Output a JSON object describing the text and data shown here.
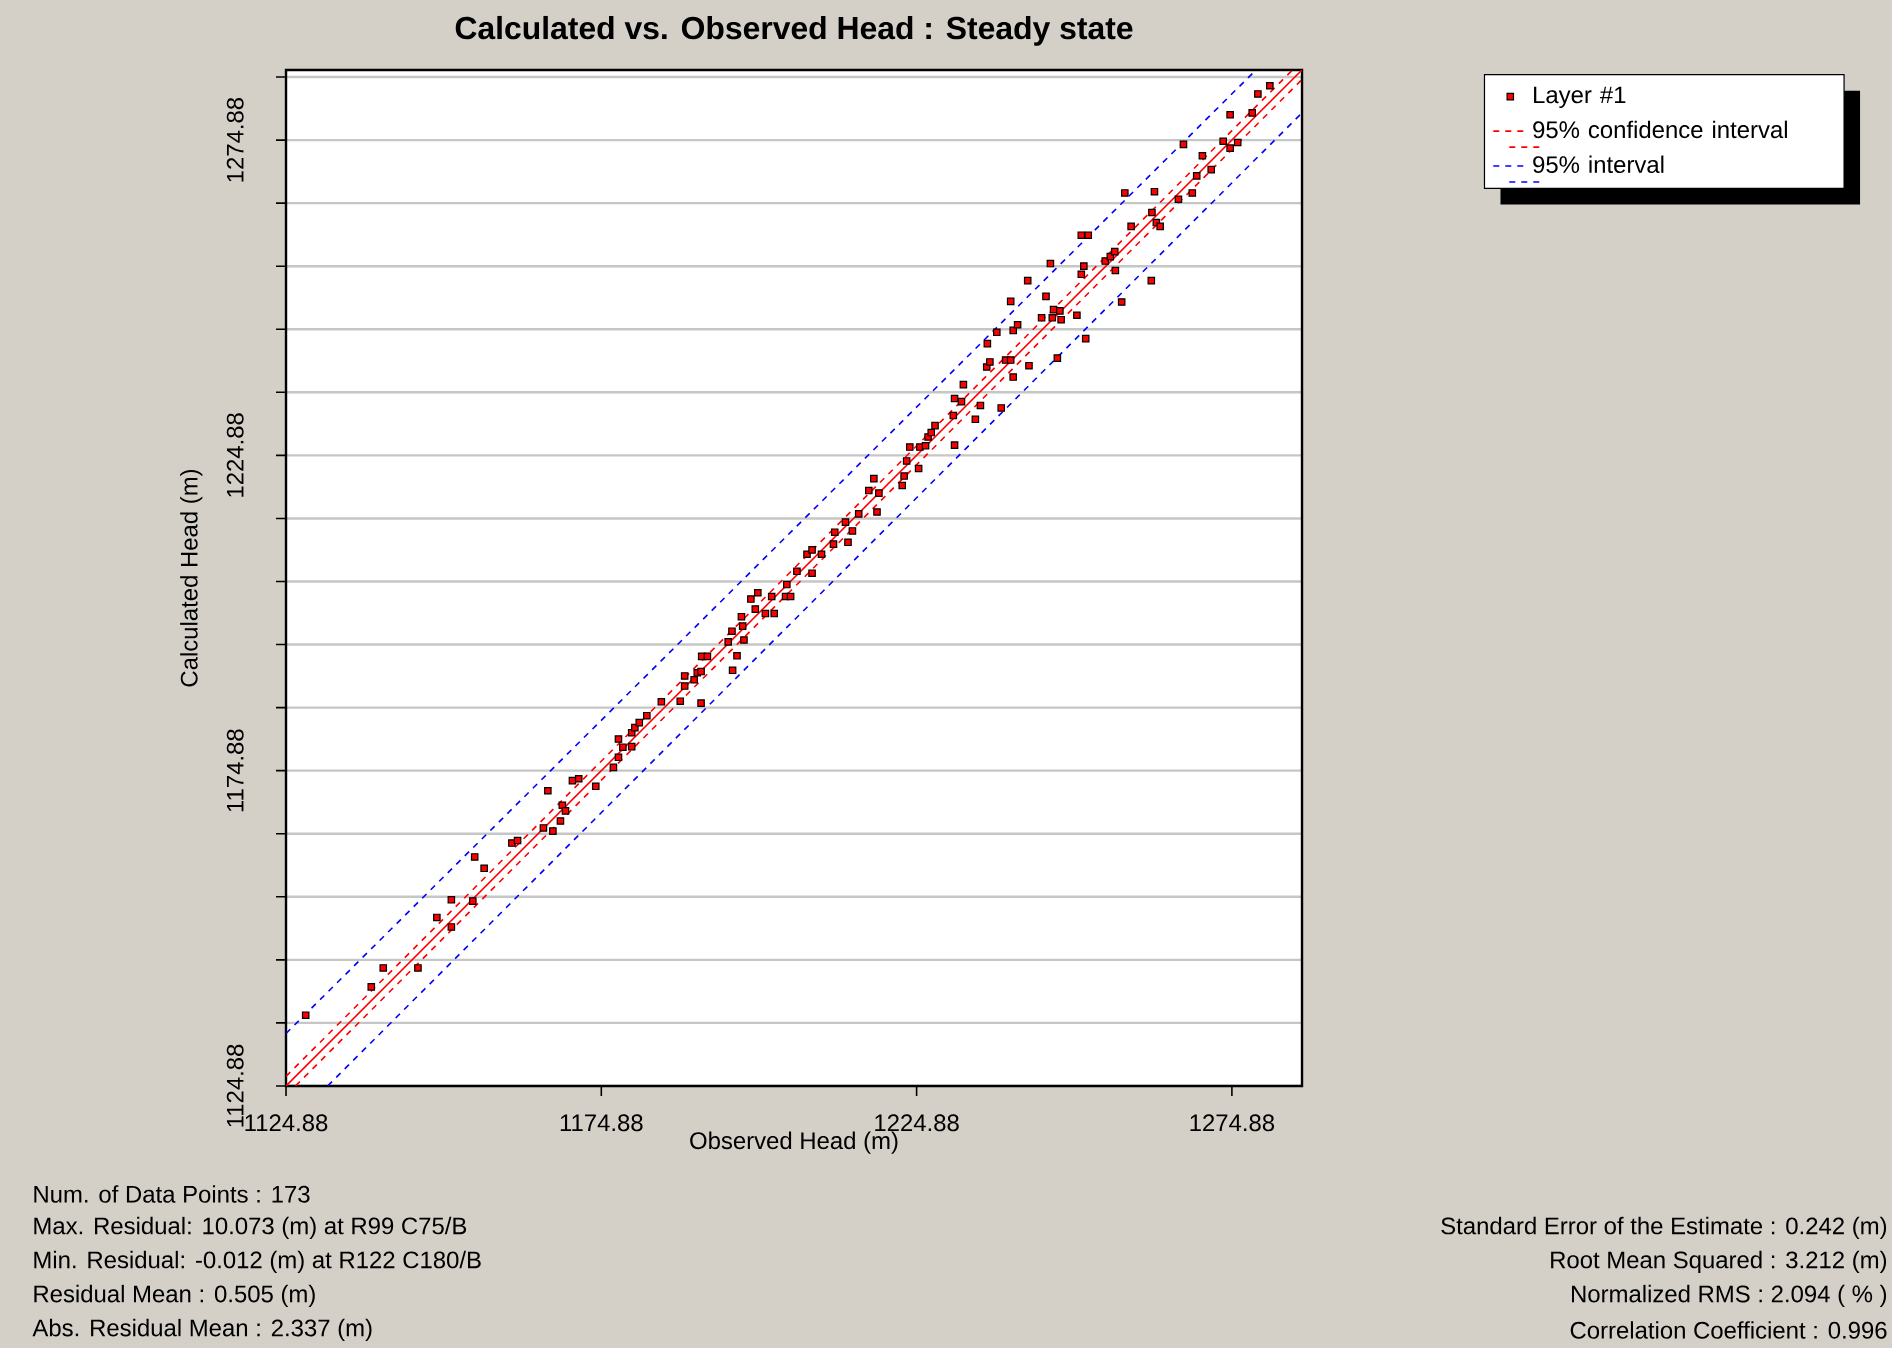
{
  "chart_data": {
    "type": "scatter",
    "title": "Calculated vs. Observed Head : Steady state",
    "xlabel": "Observed Head (m)",
    "ylabel": "Calculated Head (m)",
    "xlim": [
      1124.88,
      1286
    ],
    "ylim": [
      1124.88,
      1286
    ],
    "xticks": [
      1124.88,
      1174.88,
      1224.88,
      1274.88
    ],
    "yticks": [
      1124.88,
      {
        "value": 1134.88,
        "label": null
      },
      {
        "value": 1144.88,
        "label": null
      },
      {
        "value": 1154.88,
        "label": null
      },
      {
        "value": 1164.88,
        "label": null
      },
      1174.88,
      {
        "value": 1184.88,
        "label": null
      },
      {
        "value": 1194.88,
        "label": null
      },
      {
        "value": 1204.88,
        "label": null
      },
      {
        "value": 1214.88,
        "label": null
      },
      1224.88,
      {
        "value": 1234.88,
        "label": null
      },
      {
        "value": 1244.88,
        "label": null
      },
      {
        "value": 1254.88,
        "label": null
      },
      {
        "value": 1264.88,
        "label": null
      },
      1274.88,
      {
        "value": 1284.88,
        "label": null
      }
    ],
    "grid": "y",
    "legend": "top right",
    "series": [
      {
        "name": "Layer #1",
        "marker": "square",
        "color": "#ff0000",
        "x": [
          1128.0,
          1138.4,
          1140.3,
          1145.8,
          1148.8,
          1151.1,
          1151.1,
          1154.5,
          1154.8,
          1156.3,
          1160.7,
          1161.6,
          1165.7,
          1167.2,
          1166.4,
          1168.4,
          1168.7,
          1169.2,
          1170.3,
          1171.3,
          1174.0,
          1176.8,
          1177.6,
          1177.6,
          1178.3,
          1179.7,
          1179.7,
          1180.2,
          1180.9,
          1182.1,
          1184.4,
          1187.4,
          1188.1,
          1188.1,
          1189.6,
          1190.1,
          1190.7,
          1190.7,
          1190.8,
          1191.7,
          1195.0,
          1195.6,
          1195.7,
          1196.4,
          1197.1,
          1197.3,
          1197.5,
          1198.6,
          1199.3,
          1199.7,
          1200.9,
          1201.9,
          1202.3,
          1204.3,
          1204.1,
          1204.9,
          1205.9,
          1207.5,
          1208.3,
          1208.3,
          1209.8,
          1211.7,
          1211.9,
          1213.6,
          1214.0,
          1214.7,
          1215.7,
          1217.3,
          1218.1,
          1218.9,
          1218.6,
          1222.6,
          1222.9,
          1223.3,
          1225.2,
          1223.8,
          1225.4,
          1226.3,
          1226.7,
          1227.2,
          1227.8,
          1230.9,
          1230.7,
          1230.9,
          1232.3,
          1232.0,
          1235.0,
          1234.2,
          1238.3,
          1236.0,
          1236.5,
          1239.0,
          1239.8,
          1240.2,
          1242.7,
          1236.1,
          1237.6,
          1240.2,
          1240.9,
          1244.7,
          1246.4,
          1246.6,
          1247.6,
          1247.8,
          1247.2,
          1250.3,
          1251.7,
          1245.4,
          1239.8,
          1242.5,
          1246.1,
          1251.0,
          1251.4,
          1254.8,
          1255.6,
          1256.3,
          1256.4,
          1257.4,
          1262.1,
          1251.0,
          1252.1,
          1257.9,
          1258.9,
          1262.2,
          1262.9,
          1263.5,
          1262.6,
          1266.4,
          1268.6,
          1269.3,
          1270.2,
          1267.2,
          1271.6,
          1273.5,
          1274.6,
          1275.8,
          1274.6,
          1278.1,
          1279.0,
          1280.9
        ],
        "values": [
          1136.1,
          1140.6,
          1143.6,
          1143.6,
          1151.6,
          1154.4,
          1150.1,
          1154.2,
          1161.2,
          1159.4,
          1163.4,
          1163.8,
          1165.8,
          1165.3,
          1171.7,
          1166.9,
          1169.4,
          1168.5,
          1173.3,
          1173.6,
          1172.4,
          1175.4,
          1177.0,
          1179.9,
          1178.6,
          1178.7,
          1180.9,
          1181.7,
          1182.5,
          1183.6,
          1185.8,
          1185.9,
          1189.9,
          1188.3,
          1189.3,
          1190.4,
          1190.6,
          1185.6,
          1193.0,
          1193.0,
          1195.3,
          1197.0,
          1190.8,
          1193.1,
          1199.3,
          1197.8,
          1195.6,
          1202.1,
          1200.5,
          1203.1,
          1199.8,
          1202.5,
          1199.8,
          1204.4,
          1202.5,
          1202.5,
          1206.5,
          1209.2,
          1209.9,
          1206.2,
          1209.2,
          1210.8,
          1212.7,
          1214.3,
          1211.1,
          1212.9,
          1215.6,
          1219.3,
          1221.2,
          1218.9,
          1215.9,
          1220.1,
          1221.6,
          1224.0,
          1222.8,
          1226.2,
          1226.2,
          1226.4,
          1227.8,
          1228.5,
          1229.6,
          1226.5,
          1231.2,
          1233.9,
          1236.1,
          1233.4,
          1232.8,
          1230.6,
          1232.4,
          1238.9,
          1239.7,
          1240.0,
          1240.0,
          1237.3,
          1239.1,
          1242.6,
          1244.4,
          1244.7,
          1245.6,
          1246.7,
          1246.7,
          1248.0,
          1247.8,
          1246.4,
          1240.3,
          1247.1,
          1243.4,
          1250.1,
          1249.3,
          1252.6,
          1255.3,
          1253.6,
          1254.9,
          1255.7,
          1256.4,
          1257.2,
          1254.2,
          1249.2,
          1252.6,
          1259.8,
          1259.8,
          1266.5,
          1261.2,
          1263.4,
          1261.8,
          1261.2,
          1266.7,
          1265.5,
          1266.5,
          1269.2,
          1272.4,
          1274.2,
          1270.2,
          1274.7,
          1273.6,
          1274.5,
          1278.9,
          1279.2,
          1282.2,
          1283.5
        ]
      },
      {
        "type": "line",
        "line_style": "solid",
        "color": "#ff0000",
        "x": [
          1124.9,
          1286
        ],
        "values": [
          1124.9,
          1286
        ]
      },
      {
        "name": "95% confidence interval",
        "type": "line",
        "line_style": "dashed",
        "color": "#ff0000",
        "x": [
          1124.88,
          1284.5
        ],
        "values": [
          1126.4,
          1286
        ]
      },
      {
        "type": "line",
        "line_style": "dashed",
        "color": "#ff0000",
        "x": [
          1126.4,
          1286
        ],
        "values": [
          1124.9,
          1284.5
        ]
      },
      {
        "name": "95% interval",
        "type": "line",
        "line_style": "dashed",
        "color": "#0000ff",
        "x": [
          1124.88,
          1278.7
        ],
        "values": [
          1133.2,
          1286
        ]
      },
      {
        "type": "line",
        "line_style": "dashed",
        "color": "#0000ff",
        "x": [
          1131.5,
          1286
        ],
        "values": [
          1124.9,
          1279.2
        ]
      }
    ],
    "annotations": [
      "Num. of Data Points : 173",
      "Max. Residual: 10.073 (m) at R99 C75/B",
      "Min. Residual: -0.012 (m) at R122 C180/B",
      "Residual Mean : 0.505 (m)",
      "Abs. Residual Mean : 2.337 (m)",
      "Standard Error of the Estimate : 0.242 (m)",
      "Root Mean Squared : 3.212 (m)",
      "Normalized RMS : 2.094 ( % )",
      "Correlation Coefficient : 0.996"
    ]
  }
}
